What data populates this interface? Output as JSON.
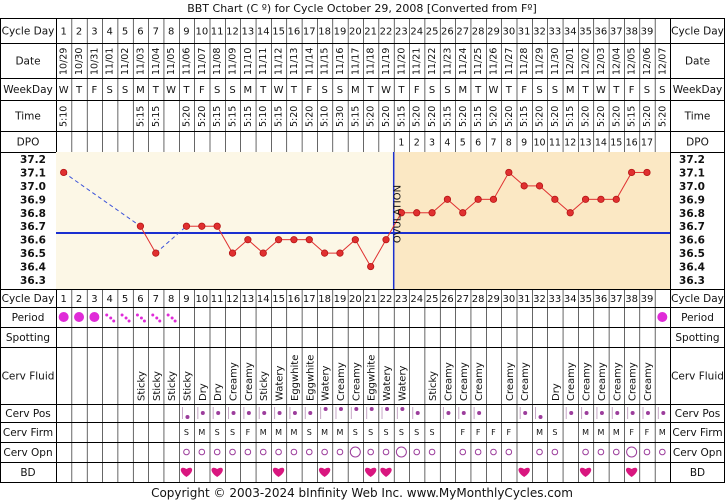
{
  "title": "BBT Chart (C º) for Cycle October 29, 2008  [Converted from Fº]",
  "copyright": "Copyright © 2003-2024 bInfinity Web Inc.     www.MyMonthlyCycles.com",
  "row_labels": {
    "cycle_day": "Cycle Day",
    "date": "Date",
    "weekday": "WeekDay",
    "time": "Time",
    "dpo": "DPO",
    "period": "Period",
    "spotting": "Spotting",
    "cerv_fluid": "Cerv Fluid",
    "cerv_pos": "Cerv Pos",
    "cerv_firm": "Cerv Firm",
    "cerv_opn": "Cerv Opn",
    "bd": "BD"
  },
  "ovulation_label": "OVULATION",
  "colors": {
    "temp_line": "#e03030",
    "coverline": "#1a2fd0",
    "ovulation": "#1a2fd0",
    "pre_ov_bg": "#fcf7e6",
    "post_ov_bg": "#fbe8c4",
    "period": "#e02bd8",
    "heart": "#d9167f"
  },
  "chart_data": {
    "type": "line",
    "cycle_days": [
      1,
      2,
      3,
      4,
      5,
      6,
      7,
      8,
      9,
      10,
      11,
      12,
      13,
      14,
      15,
      16,
      17,
      18,
      19,
      20,
      21,
      22,
      23,
      24,
      25,
      26,
      27,
      28,
      29,
      30,
      31,
      32,
      33,
      34,
      35,
      36,
      37,
      38,
      39
    ],
    "dates": [
      "10/29",
      "10/30",
      "10/31",
      "11/01",
      "11/02",
      "11/03",
      "11/04",
      "11/05",
      "11/06",
      "11/07",
      "11/08",
      "11/09",
      "11/10",
      "11/11",
      "11/12",
      "11/13",
      "11/14",
      "11/15",
      "11/16",
      "11/17",
      "11/18",
      "11/19",
      "11/20",
      "11/21",
      "11/22",
      "11/23",
      "11/24",
      "11/25",
      "11/26",
      "11/27",
      "11/28",
      "11/29",
      "11/30",
      "12/01",
      "12/02",
      "12/03",
      "12/04",
      "12/05",
      "12/06",
      "12/07"
    ],
    "weekdays": [
      "W",
      "T",
      "F",
      "S",
      "S",
      "M",
      "T",
      "W",
      "T",
      "F",
      "S",
      "S",
      "M",
      "T",
      "W",
      "T",
      "F",
      "S",
      "S",
      "M",
      "T",
      "W",
      "T",
      "F",
      "S",
      "S",
      "M",
      "T",
      "W",
      "T",
      "F",
      "S",
      "S",
      "M",
      "T",
      "W",
      "T",
      "F",
      "S",
      "S"
    ],
    "times": [
      "5:10",
      "",
      "",
      "",
      "",
      "5:15",
      "5:15",
      "",
      "5:20",
      "5:20",
      "5:15",
      "5:15",
      "5:15",
      "5:10",
      "5:15",
      "5:20",
      "5:20",
      "5:10",
      "5:30",
      "5:15",
      "5:20",
      "5:20",
      "5:15",
      "5:20",
      "5:20",
      "5:15",
      "5:20",
      "5:15",
      "5:20",
      "5:20",
      "5:15",
      "5:20",
      "5:20",
      "5:15",
      "5:20",
      "5:20",
      "5:20",
      "5:15",
      "5:20",
      "5:20"
    ],
    "dpo": [
      "",
      "",
      "",
      "",
      "",
      "",
      "",
      "",
      "",
      "",
      "",
      "",
      "",
      "",
      "",
      "",
      "",
      "",
      "",
      "",
      "",
      "",
      "1",
      "2",
      "3",
      "4",
      "5",
      "6",
      "7",
      "8",
      "9",
      "10",
      "11",
      "12",
      "13",
      "14",
      "15",
      "16",
      "17",
      ""
    ],
    "temperatures": [
      37.1,
      null,
      null,
      null,
      null,
      36.7,
      36.5,
      null,
      36.7,
      36.7,
      36.7,
      36.5,
      36.6,
      36.5,
      36.6,
      36.6,
      36.6,
      36.5,
      36.5,
      36.6,
      36.4,
      36.6,
      36.8,
      36.8,
      36.8,
      36.9,
      36.8,
      36.9,
      36.9,
      37.1,
      37.0,
      37.0,
      36.9,
      36.8,
      36.9,
      36.9,
      36.9,
      37.1,
      37.1,
      null
    ],
    "y_ticks": [
      "37.2",
      "37.1",
      "37.0",
      "36.9",
      "36.8",
      "36.7",
      "36.6",
      "36.5",
      "36.4",
      "36.3"
    ],
    "ylim": [
      36.3,
      37.2
    ],
    "coverline": 36.65,
    "ovulation_day": 22,
    "period": [
      "heavy",
      "heavy",
      "heavy",
      "light",
      "light",
      "light",
      "light",
      "light",
      "",
      "",
      "",
      "",
      "",
      "",
      "",
      "",
      "",
      "",
      "",
      "",
      "",
      "",
      "",
      "",
      "",
      "",
      "",
      "",
      "",
      "",
      "",
      "",
      "",
      "",
      "",
      "",
      "",
      "",
      "",
      "heavy"
    ],
    "cerv_fluid": [
      "",
      "",
      "",
      "",
      "",
      "Sticky",
      "Sticky",
      "Sticky",
      "Sticky",
      "Dry",
      "Dry",
      "Creamy",
      "Creamy",
      "Sticky",
      "Watery",
      "Eggwhite",
      "Eggwhite",
      "Watery",
      "Creamy",
      "Creamy",
      "Eggwhite",
      "Watery",
      "Watery",
      "",
      "Sticky",
      "Creamy",
      "Creamy",
      "Creamy",
      "",
      "Creamy",
      "Creamy",
      "",
      "Dry",
      "Creamy",
      "Creamy",
      "Creamy",
      "Creamy",
      "Creamy",
      "Creamy",
      ""
    ],
    "cerv_pos": [
      "",
      "",
      "",
      "",
      "",
      "",
      "",
      "",
      "low",
      "med",
      "med",
      "med",
      "med",
      "med",
      "med",
      "med",
      "med",
      "high",
      "high",
      "high",
      "high",
      "high",
      "high",
      "med",
      "",
      "med",
      "med",
      "med",
      "",
      "",
      "med",
      "low",
      "",
      "med",
      "med",
      "med",
      "med",
      "med",
      "med",
      "med"
    ],
    "cerv_firm": [
      "",
      "",
      "",
      "",
      "",
      "",
      "",
      "",
      "S",
      "M",
      "S",
      "S",
      "F",
      "M",
      "M",
      "M",
      "S",
      "M",
      "M",
      "S",
      "S",
      "S",
      "S",
      "S",
      "S",
      "",
      "F",
      "F",
      "F",
      "F",
      "",
      "M",
      "S",
      "",
      "M",
      "M",
      "M",
      "F",
      "F",
      "M"
    ],
    "cerv_opn": [
      "",
      "",
      "",
      "",
      "",
      "",
      "",
      "",
      "o",
      "o",
      "o",
      "o",
      "o",
      "o",
      "o",
      "o",
      "o",
      "o",
      "o",
      "O",
      "o",
      "o",
      "O",
      "o",
      "o",
      "",
      "o",
      "o",
      "o",
      "o",
      "",
      "o",
      "o",
      "",
      "o",
      "o",
      "o",
      "O",
      "o",
      "o"
    ],
    "bd": [
      "",
      "",
      "",
      "",
      "",
      "",
      "",
      "",
      "yes",
      "",
      "yes",
      "",
      "",
      "",
      "yes",
      "",
      "",
      "yes",
      "",
      "",
      "yes",
      "yes",
      "",
      "",
      "",
      "",
      "",
      "",
      "",
      "",
      "yes",
      "",
      "",
      "",
      "yes",
      "",
      "",
      "yes",
      "",
      ""
    ]
  }
}
